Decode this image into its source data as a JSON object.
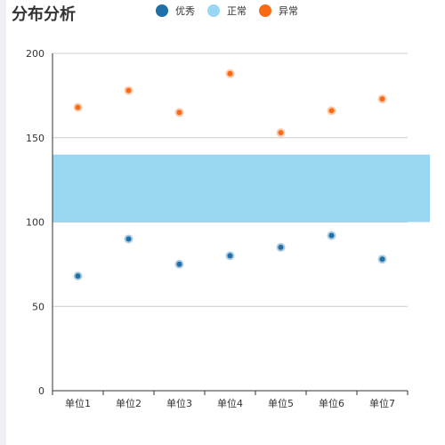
{
  "title": "分布分析",
  "legend": [
    {
      "name": "优秀",
      "color": "#1f6fa8"
    },
    {
      "name": "正常",
      "color": "#99d6f2"
    },
    {
      "name": "异常",
      "color": "#f96a14"
    }
  ],
  "chart_data": {
    "type": "scatter",
    "title": "分布分析",
    "categories": [
      "单位1",
      "单位2",
      "单位3",
      "单位4",
      "单位5",
      "单位6",
      "单位7"
    ],
    "series": [
      {
        "name": "优秀",
        "values": [
          68,
          90,
          75,
          80,
          85,
          92,
          78
        ],
        "color": "#1f6fa8"
      },
      {
        "name": "异常",
        "values": [
          168,
          178,
          165,
          188,
          153,
          166,
          173
        ],
        "color": "#f96a14"
      }
    ],
    "bands": [
      {
        "name": "正常",
        "from": 100,
        "to": 140,
        "color": "#99d6f2"
      }
    ],
    "ylim": [
      0,
      200
    ],
    "yticks": [
      0,
      50,
      100,
      150,
      200
    ],
    "grid": true,
    "legend_position": "top-center"
  }
}
